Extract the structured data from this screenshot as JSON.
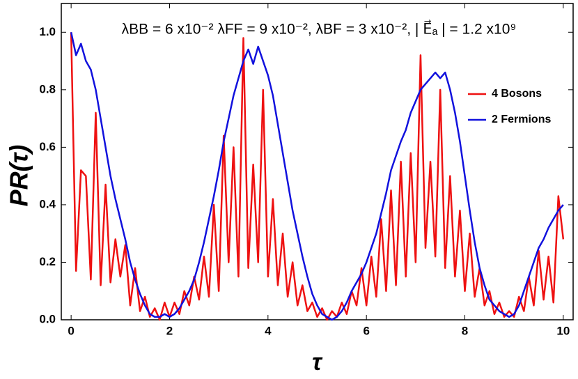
{
  "chart_data": {
    "type": "line",
    "title": "λBB = 6 x10⁻² λFF = 9 x10⁻², λBF = 3 x10⁻², | E⃗ₐ | = 1.2 x10⁹",
    "xlabel": "τ",
    "ylabel": "PR(τ)",
    "x": [
      0,
      0.1,
      0.2,
      0.3,
      0.4,
      0.5,
      0.6,
      0.7,
      0.8,
      0.9,
      1,
      1.1,
      1.2,
      1.3,
      1.4,
      1.5,
      1.6,
      1.7,
      1.8,
      1.9,
      2,
      2.1,
      2.2,
      2.3,
      2.4,
      2.5,
      2.6,
      2.7,
      2.8,
      2.9,
      3,
      3.1,
      3.2,
      3.3,
      3.4,
      3.5,
      3.6,
      3.7,
      3.8,
      3.9,
      4,
      4.1,
      4.2,
      4.3,
      4.4,
      4.5,
      4.6,
      4.7,
      4.8,
      4.9,
      5,
      5.1,
      5.2,
      5.3,
      5.4,
      5.5,
      5.6,
      5.7,
      5.8,
      5.9,
      6,
      6.1,
      6.2,
      6.3,
      6.4,
      6.5,
      6.6,
      6.7,
      6.8,
      6.9,
      7,
      7.1,
      7.2,
      7.3,
      7.4,
      7.5,
      7.6,
      7.7,
      7.8,
      7.9,
      8,
      8.1,
      8.2,
      8.3,
      8.4,
      8.5,
      8.6,
      8.7,
      8.8,
      8.9,
      9,
      9.1,
      9.2,
      9.3,
      9.4,
      9.5,
      9.6,
      9.7,
      9.8,
      9.9,
      10
    ],
    "series": [
      {
        "name": "4 Bosons",
        "color": "#ee1111",
        "values": [
          1.0,
          0.17,
          0.52,
          0.5,
          0.14,
          0.72,
          0.12,
          0.47,
          0.13,
          0.28,
          0.15,
          0.26,
          0.05,
          0.18,
          0.03,
          0.08,
          0.01,
          0.04,
          0.0,
          0.06,
          0.01,
          0.06,
          0.02,
          0.1,
          0.05,
          0.15,
          0.07,
          0.22,
          0.08,
          0.4,
          0.1,
          0.64,
          0.2,
          0.6,
          0.15,
          0.98,
          0.18,
          0.54,
          0.2,
          0.8,
          0.15,
          0.42,
          0.12,
          0.3,
          0.08,
          0.2,
          0.05,
          0.12,
          0.03,
          0.06,
          0.01,
          0.04,
          0.0,
          0.03,
          0.01,
          0.06,
          0.02,
          0.1,
          0.05,
          0.18,
          0.05,
          0.22,
          0.08,
          0.35,
          0.1,
          0.45,
          0.12,
          0.55,
          0.15,
          0.58,
          0.2,
          0.92,
          0.25,
          0.55,
          0.22,
          0.8,
          0.18,
          0.5,
          0.15,
          0.38,
          0.1,
          0.3,
          0.08,
          0.18,
          0.05,
          0.1,
          0.02,
          0.06,
          0.01,
          0.03,
          0.01,
          0.08,
          0.03,
          0.15,
          0.05,
          0.24,
          0.07,
          0.22,
          0.06,
          0.43,
          0.28
        ]
      },
      {
        "name": "2 Fermions",
        "color": "#1111dd",
        "values": [
          1.0,
          0.92,
          0.96,
          0.9,
          0.87,
          0.8,
          0.7,
          0.6,
          0.5,
          0.42,
          0.35,
          0.28,
          0.2,
          0.14,
          0.09,
          0.05,
          0.02,
          0.01,
          0.01,
          0.02,
          0.01,
          0.02,
          0.04,
          0.07,
          0.1,
          0.14,
          0.2,
          0.27,
          0.35,
          0.43,
          0.52,
          0.62,
          0.7,
          0.78,
          0.84,
          0.9,
          0.94,
          0.89,
          0.95,
          0.9,
          0.85,
          0.78,
          0.68,
          0.58,
          0.48,
          0.38,
          0.3,
          0.22,
          0.15,
          0.09,
          0.05,
          0.02,
          0.01,
          0.0,
          0.01,
          0.03,
          0.06,
          0.1,
          0.13,
          0.16,
          0.2,
          0.25,
          0.3,
          0.37,
          0.44,
          0.52,
          0.57,
          0.62,
          0.66,
          0.72,
          0.76,
          0.8,
          0.82,
          0.84,
          0.86,
          0.84,
          0.86,
          0.8,
          0.72,
          0.62,
          0.5,
          0.38,
          0.27,
          0.18,
          0.12,
          0.07,
          0.05,
          0.03,
          0.02,
          0.01,
          0.02,
          0.05,
          0.1,
          0.15,
          0.2,
          0.25,
          0.28,
          0.32,
          0.35,
          0.38,
          0.4
        ]
      }
    ],
    "xlim": [
      -0.2,
      10.2
    ],
    "ylim": [
      0,
      1.1
    ],
    "xticks": [
      0,
      2,
      4,
      6,
      8,
      10
    ],
    "yticks": [
      {
        "value": 0,
        "label": "0.0"
      },
      {
        "value": 0.2,
        "label": "0.2"
      },
      {
        "value": 0.4,
        "label": "0.4"
      },
      {
        "value": 0.6,
        "label": "0.6"
      },
      {
        "value": 0.8,
        "label": "0.8"
      },
      {
        "value": 1,
        "label": "1.0"
      }
    ],
    "legend": "right"
  }
}
